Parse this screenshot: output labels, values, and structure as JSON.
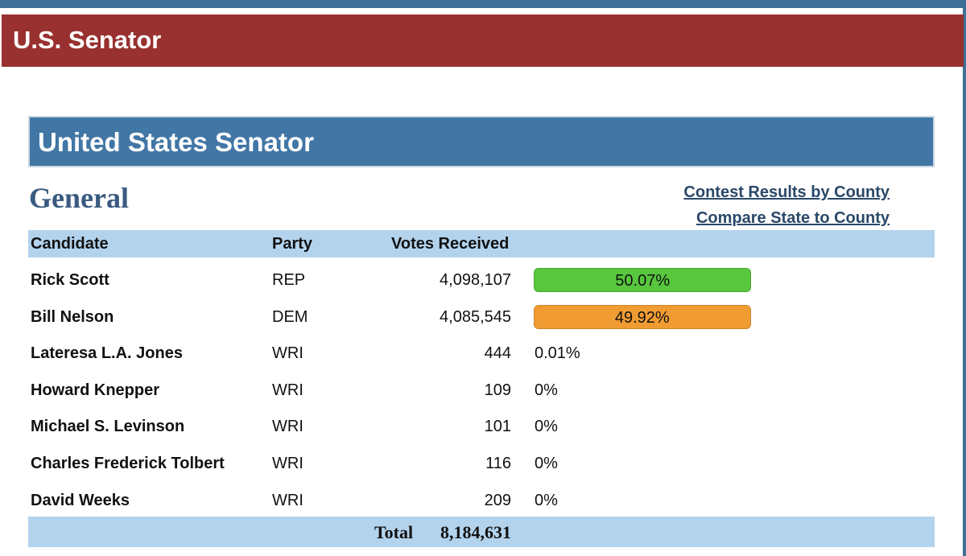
{
  "header": {
    "title": "U.S. Senator"
  },
  "contest": {
    "title": "United States Senator",
    "section": "General"
  },
  "links": {
    "by_county": "Contest Results by County",
    "compare": "Compare State to County"
  },
  "table": {
    "columns": {
      "candidate": "Candidate",
      "party": "Party",
      "votes": "Votes Received"
    },
    "rows": [
      {
        "candidate": "Rick Scott",
        "party": "REP",
        "votes": "4,098,107",
        "pct": "50.07%",
        "pct_value": 50.07,
        "bar_color": "#58c73d",
        "bar_border": "#4aa632"
      },
      {
        "candidate": "Bill Nelson",
        "party": "DEM",
        "votes": "4,085,545",
        "pct": "49.92%",
        "pct_value": 49.92,
        "bar_color": "#f09c33",
        "bar_border": "#d0852a"
      },
      {
        "candidate": "Lateresa L.A. Jones",
        "party": "WRI",
        "votes": "444",
        "pct": "0.01%",
        "pct_value": 0.01
      },
      {
        "candidate": "Howard Knepper",
        "party": "WRI",
        "votes": "109",
        "pct": "0%",
        "pct_value": 0
      },
      {
        "candidate": "Michael S. Levinson",
        "party": "WRI",
        "votes": "101",
        "pct": "0%",
        "pct_value": 0
      },
      {
        "candidate": "Charles Frederick Tolbert",
        "party": "WRI",
        "votes": "116",
        "pct": "0%",
        "pct_value": 0
      },
      {
        "candidate": "David Weeks",
        "party": "WRI",
        "votes": "209",
        "pct": "0%",
        "pct_value": 0
      }
    ],
    "total_label": "Total",
    "total_value": "8,184,631"
  }
}
